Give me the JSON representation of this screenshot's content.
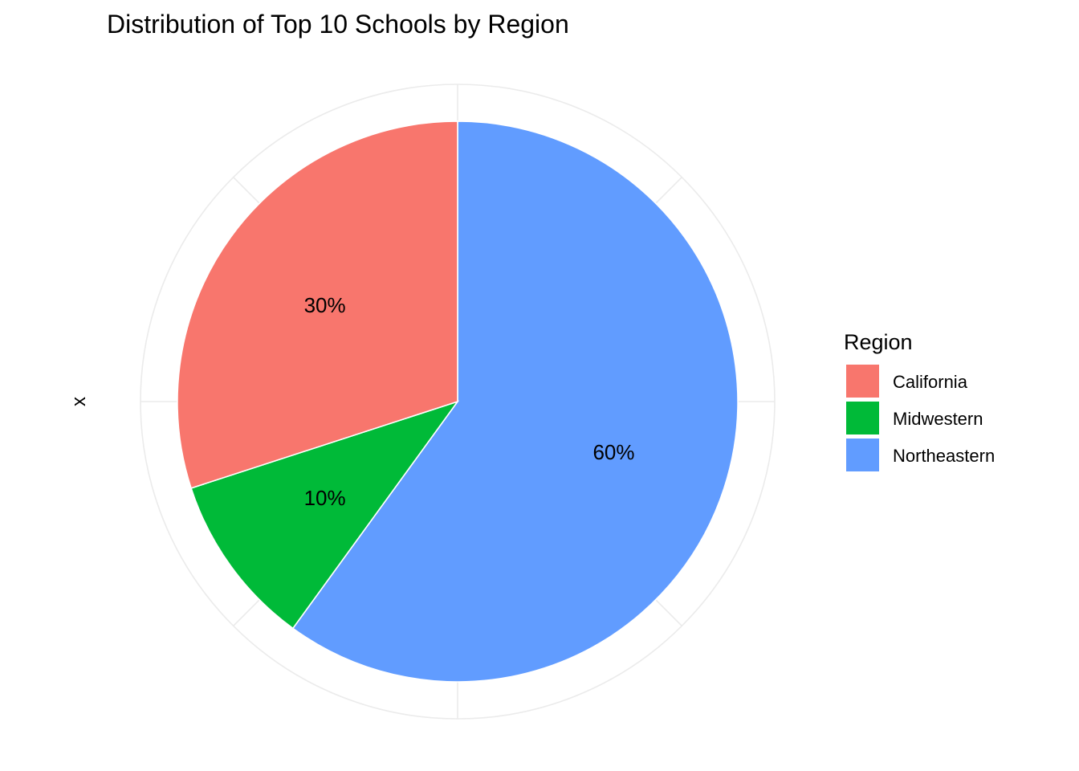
{
  "chart_data": {
    "type": "pie",
    "title": "Distribution of Top 10 Schools by Region",
    "xlabel": "",
    "ylabel": "x",
    "legend": {
      "title": "Region",
      "position": "right"
    },
    "grid": true,
    "categories": [
      "California",
      "Midwestern",
      "Northeastern"
    ],
    "values": [
      30,
      10,
      60
    ],
    "labels": [
      "30%",
      "10%",
      "60%"
    ],
    "colors": [
      "#F8766D",
      "#00BA38",
      "#619CFF"
    ]
  }
}
